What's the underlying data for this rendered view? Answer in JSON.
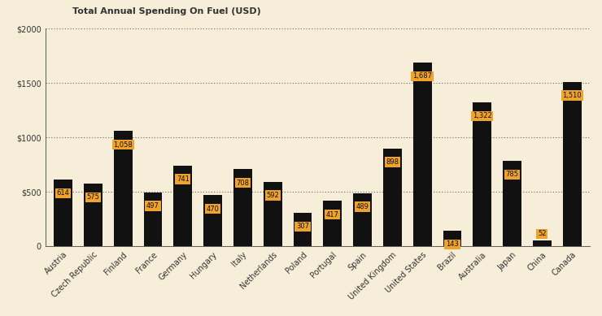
{
  "chart_data": {
    "type": "bar",
    "title": "Total Annual Spending On Fuel (USD)",
    "categories": [
      "Austria",
      "Czech Republic",
      "Finland",
      "France",
      "Germany",
      "Hungary",
      "Italy",
      "Netherlands",
      "Poland",
      "Portugal",
      "Spain",
      "United Kingdom",
      "United States",
      "Brazil",
      "Australia",
      "Japan",
      "China",
      "Canada"
    ],
    "values": [
      614,
      575,
      1058,
      497,
      741,
      470,
      708,
      592,
      307,
      417,
      489,
      898,
      1687,
      143,
      1322,
      785,
      52,
      1510
    ],
    "value_labels": [
      "614",
      "575",
      "1,058",
      "497",
      "741",
      "470",
      "708",
      "592",
      "307",
      "417",
      "489",
      "898",
      "1,687",
      "143",
      "1,322",
      "785",
      "52",
      "1,510"
    ],
    "data_labels": true,
    "color": "#111111",
    "ylim": [
      0,
      2000
    ],
    "yticks": [
      0,
      {
        "value": 500,
        "label": "$500"
      },
      {
        "value": 1000,
        "label": "$1000"
      },
      {
        "value": 1500,
        "label": "$1500"
      },
      {
        "value": 2000,
        "label": "$2000"
      }
    ],
    "grid": true
  }
}
